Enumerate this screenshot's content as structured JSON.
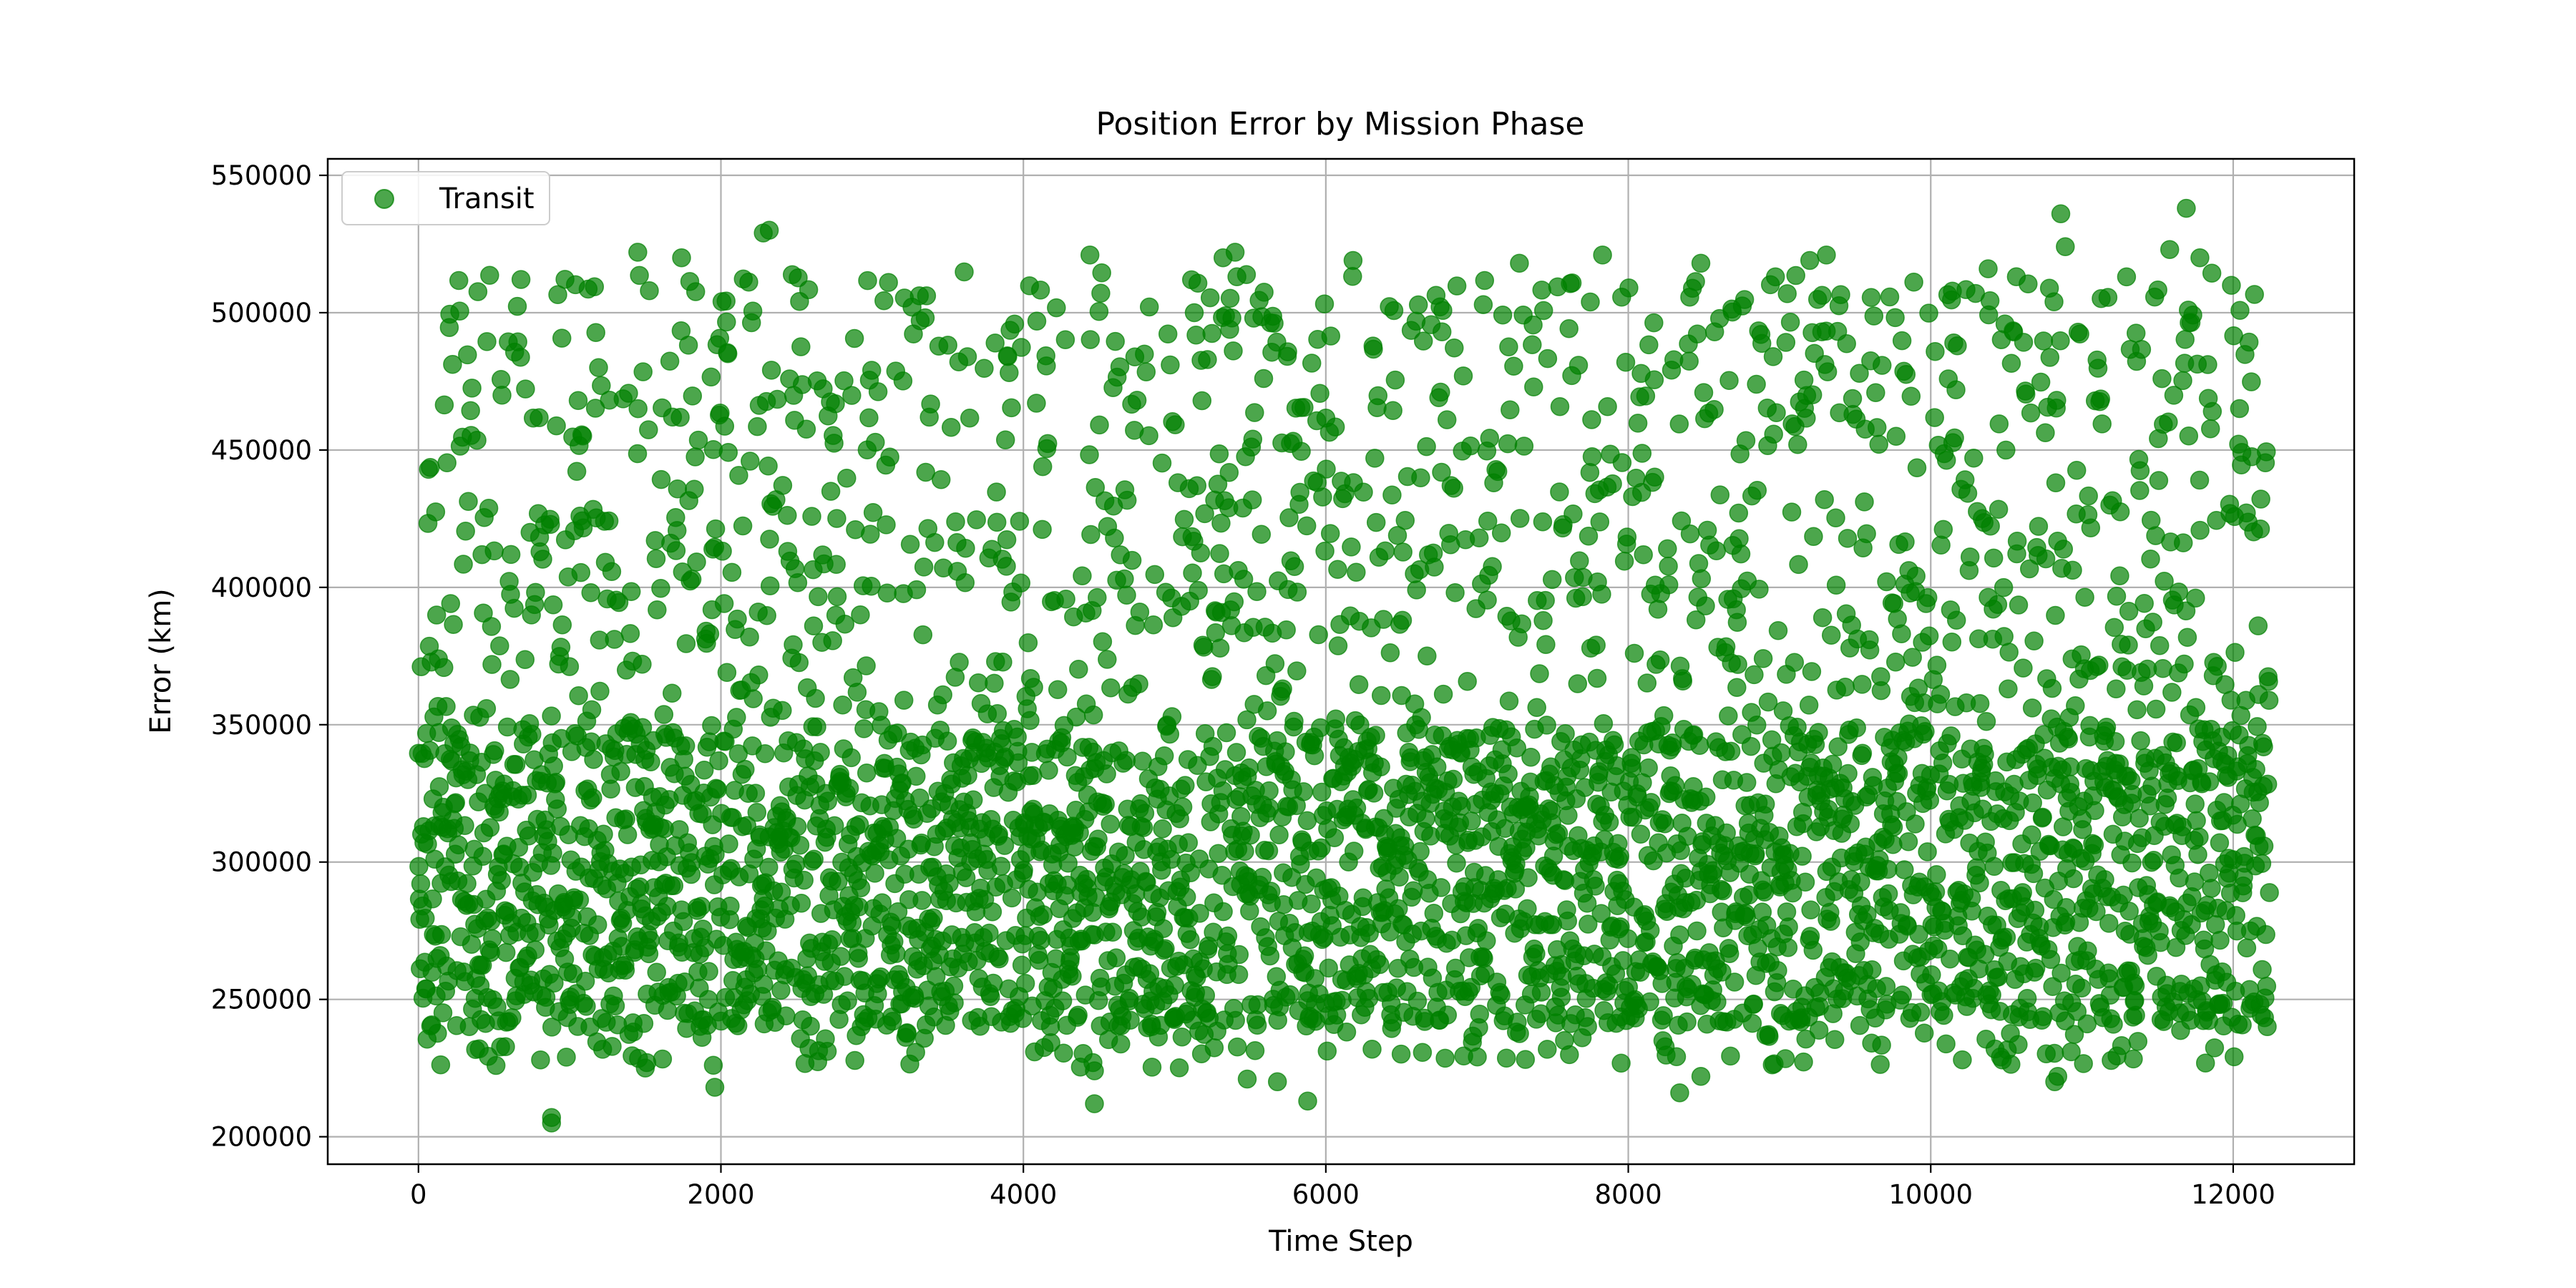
{
  "chart_data": {
    "type": "scatter",
    "title": "Position Error by Mission Phase",
    "xlabel": "Time Step",
    "ylabel": "Error (km)",
    "xlim": [
      -600,
      12800
    ],
    "ylim": [
      190000,
      556000
    ],
    "x_ticks": [
      0,
      2000,
      4000,
      6000,
      8000,
      10000,
      12000
    ],
    "y_ticks": [
      200000,
      250000,
      300000,
      350000,
      400000,
      450000,
      500000,
      550000
    ],
    "x_tick_labels": [
      "0",
      "2000",
      "4000",
      "6000",
      "8000",
      "10000",
      "12000"
    ],
    "y_tick_labels": [
      "200000",
      "250000",
      "300000",
      "350000",
      "400000",
      "450000",
      "500000",
      "550000"
    ],
    "grid": true,
    "legend": {
      "position": "top-left",
      "entries": [
        "Transit"
      ]
    },
    "series": [
      {
        "name": "Transit",
        "color": "#008000",
        "opacity": 0.7,
        "x_range": [
          0,
          12240
        ],
        "point_count": 12241,
        "dense_band": [
          240000,
          350000
        ],
        "sparse_band": [
          350000,
          515000
        ],
        "points": [
          [
            880,
            205000
          ],
          [
            880,
            207000
          ],
          [
            1960,
            218000
          ],
          [
            4470,
            212000
          ],
          [
            5880,
            213000
          ],
          [
            8340,
            216000
          ],
          [
            8480,
            222000
          ],
          [
            10820,
            220000
          ],
          [
            10840,
            222000
          ],
          [
            5680,
            220000
          ],
          [
            5480,
            221000
          ],
          [
            1500,
            225000
          ],
          [
            1510,
            227000
          ],
          [
            1950,
            226000
          ],
          [
            4460,
            227000
          ],
          [
            4470,
            224000
          ],
          [
            2280,
            529000
          ],
          [
            2320,
            530000
          ],
          [
            10860,
            536000
          ],
          [
            11690,
            538000
          ],
          [
            10890,
            524000
          ],
          [
            11580,
            523000
          ],
          [
            11780,
            520000
          ],
          [
            1450,
            522000
          ],
          [
            4440,
            521000
          ],
          [
            5400,
            522000
          ],
          [
            7830,
            521000
          ],
          [
            9310,
            521000
          ],
          [
            5320,
            520000
          ],
          [
            9200,
            519000
          ],
          [
            1740,
            520000
          ],
          [
            6180,
            519000
          ],
          [
            7280,
            518000
          ],
          [
            8480,
            518000
          ],
          [
            10380,
            516000
          ]
        ]
      }
    ]
  }
}
